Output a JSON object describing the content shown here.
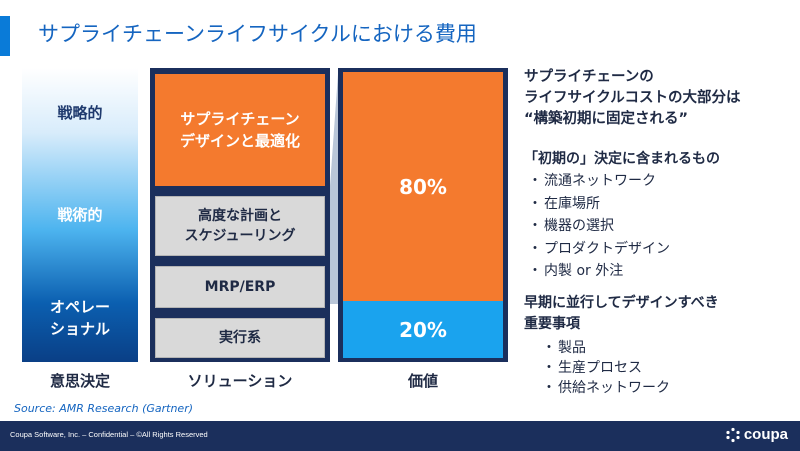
{
  "slide": {
    "title": "サプライチェーンライフサイクルにおける費用"
  },
  "decision_levels": {
    "strategic": "戦略的",
    "tactical": "戦術的",
    "operational_line1": "オペレー",
    "operational_line2": "ショナル"
  },
  "solutions": {
    "design_line1": "サプライチェーン",
    "design_line2": "デザインと最適化",
    "planning_line1": "高度な計画と",
    "planning_line2": "スケジューリング",
    "mrp": "MRP/ERP",
    "execution": "実行系"
  },
  "value": {
    "early_pct": "80%",
    "later_pct": "20%"
  },
  "chart_data": {
    "type": "bar",
    "categories": [
      "80%",
      "20%"
    ],
    "values": [
      80,
      20
    ]
  },
  "column_labels": {
    "decision": "意思決定",
    "solution": "ソリューション",
    "value": "価値"
  },
  "source": "Source: AMR  Research (Gartner)",
  "headline": {
    "line1": "サプライチェーンの",
    "line2": "ライフサイクルコストの大部分は",
    "line3": "“構築初期に固定される”"
  },
  "section1": {
    "heading": "「初期の」決定に含まれるもの",
    "bullet": "・",
    "items": [
      "流通ネットワーク",
      "在庫場所",
      "機器の選択",
      "プロダクトデザイン",
      "内製 or 外注"
    ]
  },
  "section2": {
    "heading_line1": "早期に並行してデザインすべき",
    "heading_line2": "重要事項",
    "bullet": "・",
    "items": [
      "製品",
      "生産プロセス",
      "供給ネットワーク"
    ]
  },
  "footer": {
    "text": "Coupa Software, Inc. – Confidential – ©All Rights Reserved",
    "logo": "coupa"
  },
  "colors": {
    "accent": "#0a7bd8",
    "orange": "#f47a2e",
    "blue": "#1aa3ee",
    "navy": "#1b2f5c"
  }
}
